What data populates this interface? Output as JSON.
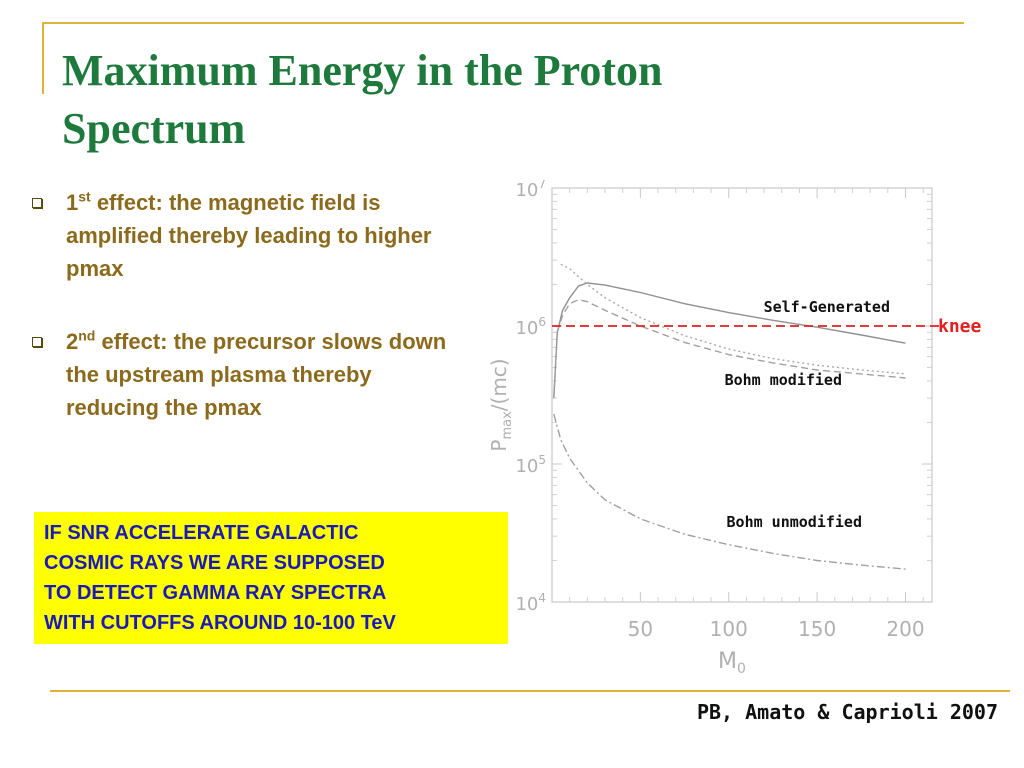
{
  "slide": {
    "title": "Maximum Energy in the Proton Spectrum",
    "bullets": [
      {
        "ordinal": "1",
        "suffix": "st",
        "text": " effect: the magnetic field is amplified thereby leading to higher pmax"
      },
      {
        "ordinal": "2",
        "suffix": "nd",
        "text": " effect: the precursor slows down the upstream plasma thereby reducing the pmax"
      }
    ],
    "callout": "IF SNR ACCELERATE GALACTIC\nCOSMIC RAYS WE ARE SUPPOSED\nTO DETECT GAMMA RAY SPECTRA\nWITH CUTOFFS AROUND 10-100 TeV",
    "citation": "PB, Amato & Caprioli 2007"
  },
  "colors": {
    "title": "#1e7a3c",
    "bullet_text": "#8b6a1c",
    "callout_bg": "#ffff00",
    "callout_text": "#1a1ab8",
    "knee": "#e02020",
    "rule": "#e0b33a"
  },
  "chart_data": {
    "type": "line",
    "xlabel": "M0",
    "ylabel": "Pmax/(mc)",
    "xlim": [
      0,
      215
    ],
    "ylim": [
      10000,
      10000000
    ],
    "yscale": "log",
    "xticks": [
      50,
      100,
      150,
      200
    ],
    "yticks": [
      {
        "value": 10000,
        "base": "10",
        "exp": "4"
      },
      {
        "value": 100000,
        "base": "10",
        "exp": "5"
      },
      {
        "value": 1000000,
        "base": "10",
        "exp": "6"
      },
      {
        "value": 10000000,
        "base": "10",
        "exp": "7"
      }
    ],
    "grid": false,
    "series": [
      {
        "label": "Self-Generated",
        "color": "#909090",
        "dash": "",
        "x": [
          1,
          3,
          6,
          10,
          15,
          20,
          30,
          50,
          75,
          100,
          125,
          150,
          175,
          200
        ],
        "y": [
          300000,
          900000,
          1300000,
          1600000,
          1950000,
          2050000,
          1980000,
          1750000,
          1450000,
          1250000,
          1100000,
          980000,
          860000,
          750000
        ]
      },
      {
        "label": "Bohm modified",
        "color": "#a0a0a0",
        "dash": "7,4",
        "x": [
          1,
          3,
          6,
          10,
          15,
          20,
          30,
          50,
          75,
          100,
          125,
          150,
          175,
          200
        ],
        "y": [
          300000,
          900000,
          1200000,
          1450000,
          1550000,
          1500000,
          1300000,
          1000000,
          760000,
          620000,
          540000,
          480000,
          450000,
          420000
        ]
      },
      {
        "label": "",
        "color": "#a8a8a8",
        "dash": "2,3",
        "x": [
          5,
          10,
          20,
          30,
          50,
          75,
          100,
          125,
          150,
          175,
          200
        ],
        "y": [
          2800000,
          2600000,
          2000000,
          1600000,
          1150000,
          850000,
          680000,
          580000,
          520000,
          480000,
          450000
        ]
      },
      {
        "label": "Bohm unmodified",
        "color": "#a0a0a0",
        "dash": "8,3,2,3",
        "x": [
          1,
          5,
          10,
          20,
          30,
          50,
          75,
          100,
          125,
          150,
          175,
          200
        ],
        "y": [
          230000,
          150000,
          110000,
          73000,
          55000,
          40000,
          31000,
          26000,
          22500,
          20000,
          18500,
          17300
        ]
      }
    ],
    "knee": {
      "label": "knee",
      "y": 1000000
    }
  }
}
